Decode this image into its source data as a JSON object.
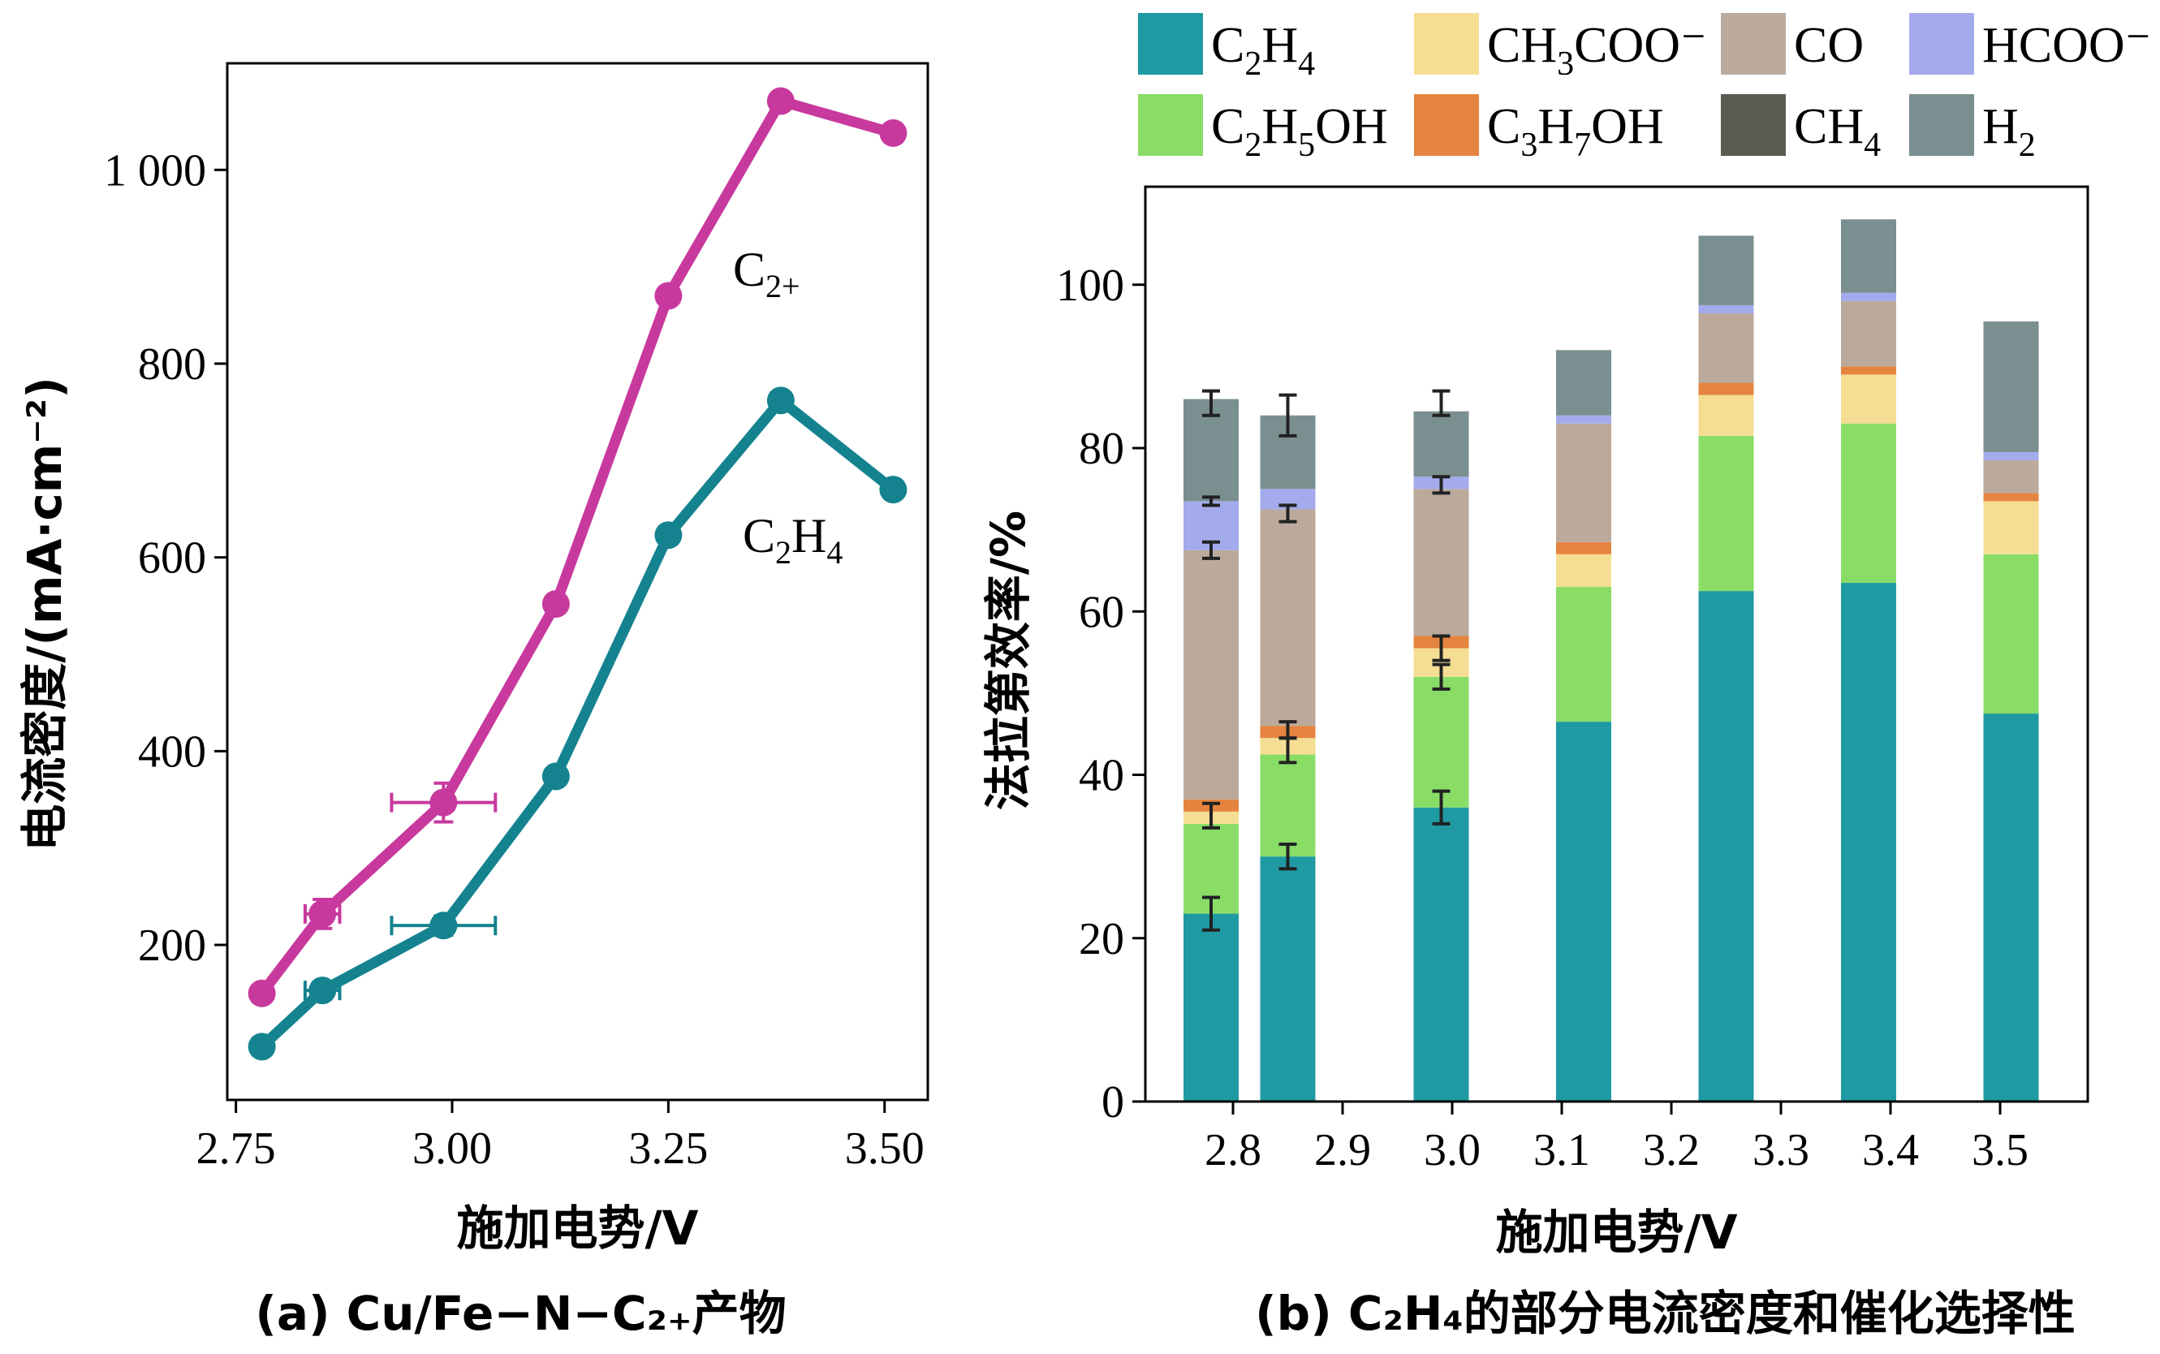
{
  "chart_data": [
    {
      "type": "line",
      "caption": "(a) Cu/Fe−N−C₂₊产物",
      "xlabel": "施加电势/V",
      "ylabel": "电流密度/(mA·cm⁻²)",
      "xlim": [
        2.74,
        3.55
      ],
      "ylim": [
        40,
        1110
      ],
      "x_ticks": [
        2.75,
        3.0,
        3.25,
        3.5
      ],
      "x_tick_labels": [
        "2.75",
        "3.00",
        "3.25",
        "3.50"
      ],
      "y_ticks": [
        200,
        400,
        600,
        800,
        1000
      ],
      "y_tick_labels": [
        "200",
        "400",
        "600",
        "800",
        "1 000"
      ],
      "series": [
        {
          "name": "C₂₊",
          "color": "#c8399e",
          "x": [
            2.78,
            2.85,
            2.99,
            3.12,
            3.25,
            3.38,
            3.51
          ],
          "y": [
            150,
            232,
            347,
            552,
            870,
            1071,
            1038
          ],
          "xerr": [
            0,
            0.02,
            0.06,
            0,
            0,
            0,
            0
          ],
          "yerr": [
            8,
            15,
            20,
            0,
            0,
            0,
            0
          ]
        },
        {
          "name": "C₂H₄",
          "color": "#14838f",
          "x": [
            2.78,
            2.85,
            2.99,
            3.12,
            3.25,
            3.38,
            3.51
          ],
          "y": [
            95,
            153,
            220,
            374,
            623,
            762,
            670
          ],
          "xerr": [
            0.01,
            0.02,
            0.06,
            0,
            0,
            0,
            0
          ],
          "yerr": [
            8,
            8,
            10,
            0,
            0,
            0,
            0
          ]
        }
      ]
    },
    {
      "type": "bar",
      "stacked": true,
      "caption": "(b) C₂H₄的部分电流密度和催化选择性",
      "xlabel": "施加电势/V",
      "ylabel": "法拉第效率/%",
      "xlim": [
        2.72,
        3.58
      ],
      "ylim": [
        0,
        112
      ],
      "x_ticks": [
        2.8,
        2.9,
        3.0,
        3.1,
        3.2,
        3.3,
        3.4,
        3.5
      ],
      "x_tick_labels": [
        "2.8",
        "2.9",
        "3.0",
        "3.1",
        "3.2",
        "3.3",
        "3.4",
        "3.5"
      ],
      "y_ticks": [
        0,
        20,
        40,
        60,
        80,
        100
      ],
      "y_tick_labels": [
        "0",
        "20",
        "40",
        "60",
        "80",
        "100"
      ],
      "x": [
        2.78,
        2.85,
        2.99,
        3.12,
        3.25,
        3.38,
        3.51
      ],
      "legend": [
        {
          "key": "C2H4",
          "base": "C",
          "parts": [
            {
              "t": "2",
              "s": true
            },
            {
              "t": "H",
              "s": false
            },
            {
              "t": "4",
              "s": true
            }
          ],
          "color": "#1f9aa3"
        },
        {
          "key": "CH3COO",
          "base": "CH",
          "parts": [
            {
              "t": "3",
              "s": true
            },
            {
              "t": "COO⁻",
              "s": false
            }
          ],
          "color": "#f5de93"
        },
        {
          "key": "CO",
          "base": "CO",
          "parts": [],
          "color": "#bbaa9c"
        },
        {
          "key": "HCOO",
          "base": "HCOO⁻",
          "parts": [],
          "color": "#a3abec"
        },
        {
          "key": "C2H5OH",
          "base": "C",
          "parts": [
            {
              "t": "2",
              "s": true
            },
            {
              "t": "H",
              "s": false
            },
            {
              "t": "5",
              "s": true
            },
            {
              "t": "OH",
              "s": false
            }
          ],
          "color": "#89dd67"
        },
        {
          "key": "C3H7OH",
          "base": "C",
          "parts": [
            {
              "t": "3",
              "s": true
            },
            {
              "t": "H",
              "s": false
            },
            {
              "t": "7",
              "s": true
            },
            {
              "t": "OH",
              "s": false
            }
          ],
          "color": "#e5843f"
        },
        {
          "key": "CH4",
          "base": "CH",
          "parts": [
            {
              "t": "4",
              "s": true
            }
          ],
          "color": "#5b5c51"
        },
        {
          "key": "H2",
          "base": "H",
          "parts": [
            {
              "t": "2",
              "s": true
            }
          ],
          "color": "#7a8f8f"
        }
      ],
      "series": [
        {
          "key": "C2H4",
          "values": [
            23,
            30,
            36,
            46.5,
            62.5,
            63.5,
            47.5
          ]
        },
        {
          "key": "C2H5OH",
          "values": [
            11,
            12.5,
            16,
            16.5,
            19,
            19.5,
            19.5
          ]
        },
        {
          "key": "CH3COO",
          "values": [
            1.5,
            2,
            3.5,
            4,
            5,
            6,
            6.5
          ]
        },
        {
          "key": "C3H7OH",
          "values": [
            1.5,
            1.5,
            1.5,
            1.5,
            1.5,
            1,
            1
          ]
        },
        {
          "key": "CO",
          "values": [
            30.5,
            26.5,
            18,
            14.5,
            8.5,
            8,
            4
          ]
        },
        {
          "key": "HCOO",
          "values": [
            6,
            2.5,
            1.5,
            1,
            1,
            1,
            1
          ]
        },
        {
          "key": "CH4",
          "values": [
            0,
            0,
            0,
            0,
            0,
            0,
            0
          ]
        },
        {
          "key": "H2",
          "values": [
            12.5,
            9,
            8,
            8,
            8.5,
            9,
            16
          ]
        }
      ],
      "error_bars": [
        {
          "x": 2.78,
          "y": [
            23,
            35,
            67.5,
            73.5,
            85.5
          ],
          "err": [
            2,
            1.5,
            1,
            0.5,
            1.5
          ]
        },
        {
          "x": 2.85,
          "y": [
            30,
            43,
            45.5,
            72,
            84
          ],
          "err": [
            1.5,
            1.5,
            1,
            1,
            2.5
          ]
        },
        {
          "x": 2.99,
          "y": [
            36,
            52,
            55.5,
            75.5,
            85.5
          ],
          "err": [
            2,
            1.5,
            1.5,
            1,
            1.5
          ]
        }
      ]
    }
  ],
  "labels": {
    "series_a_c2plus_base": "C",
    "series_a_c2plus_sub": "2+",
    "series_a_c2h4_base": "C",
    "series_a_c2h4_sub1": "2",
    "series_a_c2h4_mid": "H",
    "series_a_c2h4_sub2": "4"
  }
}
